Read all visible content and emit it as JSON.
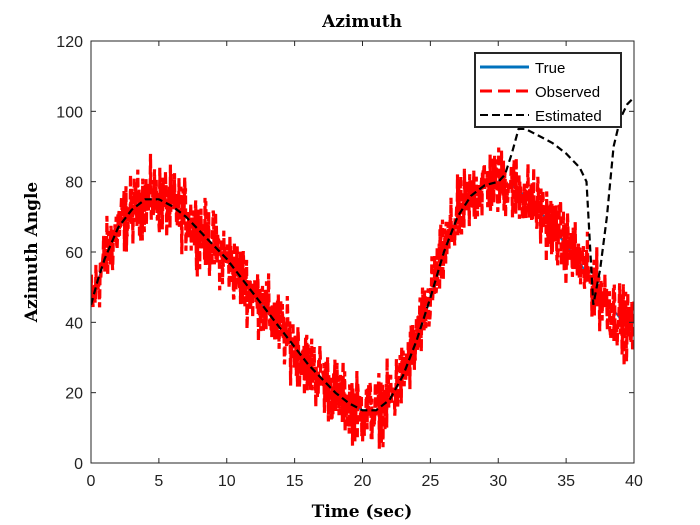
{
  "chart_data": {
    "type": "line",
    "title": "Azimuth",
    "xlabel": "Time (sec)",
    "ylabel": "Azimuth Angle",
    "xlim": [
      0,
      40
    ],
    "ylim": [
      0,
      120
    ],
    "xticks": [
      0,
      5,
      10,
      15,
      20,
      25,
      30,
      35,
      40
    ],
    "yticks": [
      0,
      20,
      40,
      60,
      80,
      100,
      120
    ],
    "legend_position": "top-right",
    "series": [
      {
        "name": "True",
        "color": "#0072BD",
        "style": "solid",
        "x": [
          0,
          1,
          2,
          3,
          4,
          5,
          6,
          7,
          8,
          9,
          10,
          11,
          12,
          13,
          14,
          15,
          16,
          17,
          18,
          19,
          20,
          21,
          22,
          23,
          24,
          25,
          26,
          27,
          28,
          29,
          30,
          31,
          32,
          33,
          34,
          35,
          36,
          37,
          38,
          39,
          40
        ],
        "y": [
          45,
          58,
          67,
          72,
          75,
          75,
          73,
          70,
          66,
          62,
          58,
          53,
          48,
          43,
          38,
          33,
          28,
          24,
          20,
          17,
          15,
          15,
          18,
          25,
          35,
          47,
          60,
          70,
          76,
          79,
          80,
          79,
          76,
          72,
          67,
          62,
          57,
          51,
          46,
          41,
          37
        ]
      },
      {
        "name": "Observed",
        "color": "#FF0000",
        "style": "dashed",
        "noise_amplitude": 9,
        "sample_step": 0.03
      },
      {
        "name": "Estimated",
        "color": "#000000",
        "style": "dashed",
        "x": [
          0,
          0.5,
          1,
          2,
          3,
          4,
          5,
          6,
          7,
          8,
          9,
          10,
          11,
          12,
          13,
          14,
          15,
          16,
          17,
          18,
          19,
          20,
          21,
          22,
          23,
          24,
          25,
          26,
          27,
          28,
          29,
          30,
          30.5,
          31,
          31.5,
          32,
          33,
          34,
          35,
          36,
          36.5,
          37,
          37.5,
          38,
          38.5,
          39,
          39.5,
          40
        ],
        "y": [
          45,
          52,
          58,
          67,
          72,
          75,
          75,
          73,
          70,
          66,
          62,
          58,
          53,
          48,
          43,
          38,
          33,
          28,
          24,
          20,
          17,
          15,
          15,
          18,
          25,
          35,
          47,
          60,
          70,
          76,
          79,
          80,
          82,
          88,
          95,
          95,
          93,
          91,
          88,
          84,
          80,
          45,
          55,
          70,
          90,
          98,
          102,
          104
        ]
      }
    ]
  }
}
